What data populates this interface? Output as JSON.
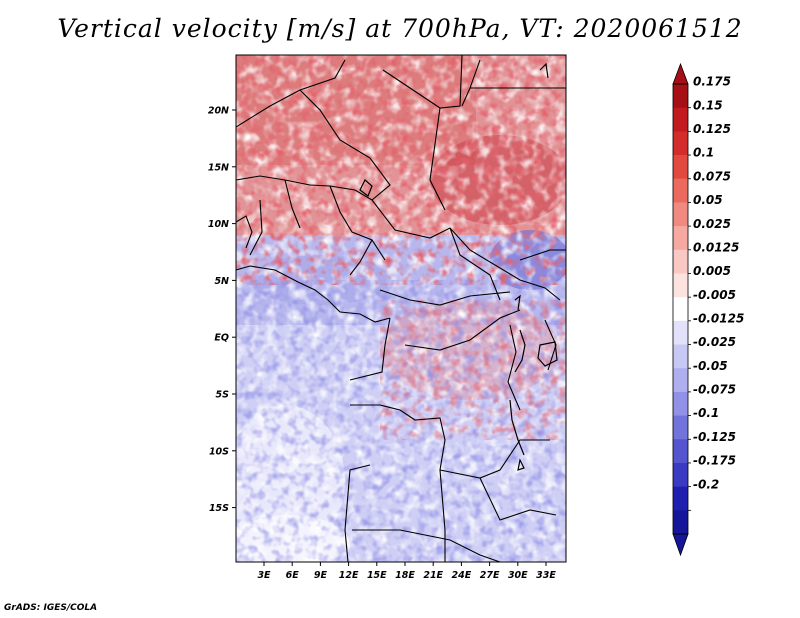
{
  "title": "Vertical velocity [m/s] at 700hPa, VT: 2020061512",
  "credit": "GrADS: IGES/COLA",
  "map": {
    "lat_labels": [
      "20N",
      "15N",
      "10N",
      "5N",
      "EQ",
      "5S",
      "10S",
      "15S"
    ],
    "lon_labels": [
      "3E",
      "6E",
      "9E",
      "12E",
      "15E",
      "18E",
      "21E",
      "24E",
      "27E",
      "30E",
      "33E"
    ],
    "lon_range": [
      0,
      35
    ],
    "lat_range": [
      -20,
      24
    ]
  },
  "colorbar": {
    "labels": [
      "0.175",
      "0.15",
      "0.125",
      "0.1",
      "0.075",
      "0.05",
      "0.025",
      "0.0125",
      "0.005",
      "-0.005",
      "-0.0125",
      "-0.025",
      "-0.05",
      "-0.075",
      "-0.1",
      "-0.125",
      "-0.175",
      "-0.2"
    ],
    "colors": [
      "#a50f15",
      "#c21a1f",
      "#d42b2b",
      "#e34a3f",
      "#ea6a5d",
      "#f08a80",
      "#f5a9a1",
      "#fac8c3",
      "#fde3e0",
      "#ffffff",
      "#e1e1fa",
      "#c8c8f5",
      "#afaff0",
      "#9191e8",
      "#7373dc",
      "#5555cf",
      "#3a3ac2",
      "#2020b0",
      "#16169a"
    ]
  }
}
